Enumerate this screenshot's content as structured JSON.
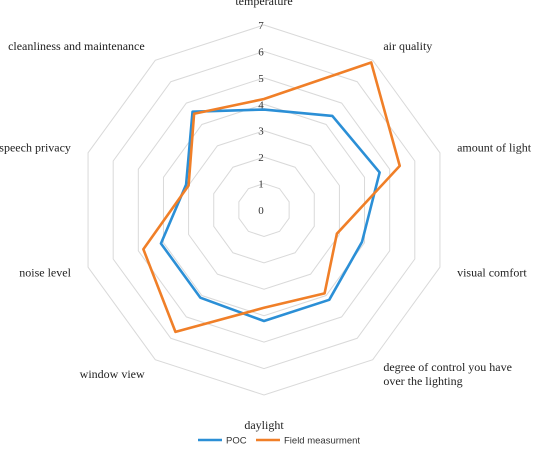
{
  "chart_data": {
    "type": "radar",
    "title": "",
    "rlim": [
      0,
      7
    ],
    "ticks": [
      "0",
      "1",
      "2",
      "3",
      "4",
      "5",
      "6",
      "7"
    ],
    "categories": [
      [
        "temperature"
      ],
      [
        "air quality"
      ],
      [
        "amount of light"
      ],
      [
        "visual comfort"
      ],
      [
        "degree of control you have",
        "over the lighting"
      ],
      [
        "daylight"
      ],
      [
        "window view"
      ],
      [
        "noise level"
      ],
      [
        "speech privacy"
      ],
      [
        "cleanliness and maintenance"
      ]
    ],
    "series": [
      {
        "name": "POC",
        "color": "#2b8fd6",
        "values": [
          3.8,
          4.4,
          4.6,
          3.9,
          4.2,
          4.2,
          4.1,
          4.1,
          3.1,
          4.6
        ]
      },
      {
        "name": "Field measurment",
        "color": "#f07f28",
        "values": [
          4.2,
          6.9,
          5.4,
          2.9,
          3.9,
          3.7,
          5.7,
          4.8,
          3.0,
          4.5
        ]
      }
    ],
    "legend_position": "bottom",
    "grid": true
  }
}
